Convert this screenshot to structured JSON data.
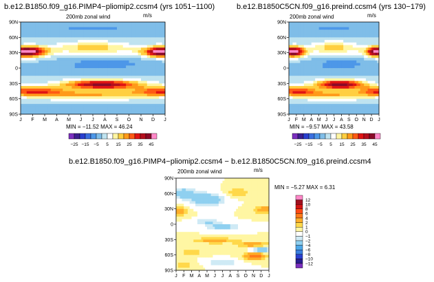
{
  "palette": {
    "wind": [
      "#7b2fbf",
      "#3b1f8f",
      "#2a3fcf",
      "#3a6fe0",
      "#4d97e8",
      "#7fbde8",
      "#bfe3f0",
      "#ffffff",
      "#fff6a3",
      "#ffcf40",
      "#ff9a1a",
      "#ff5a14",
      "#e01414",
      "#b40f1e",
      "#8a0a28",
      "#ff88c8"
    ],
    "diff": [
      "#7b2fbf",
      "#2a1f8f",
      "#2a3fcf",
      "#3a7fe0",
      "#4da7e8",
      "#8fd0f0",
      "#cfeaf5",
      "#ffffff",
      "#fff6a3",
      "#ffd84a",
      "#ffae2a",
      "#ff7a1a",
      "#ff4a14",
      "#d41414",
      "#a00f1e",
      "#ff88c8"
    ]
  },
  "chart_data": [
    {
      "type": "heatmap",
      "title": "b.e12.B1850.f09_g16.PIMP4−pliomip2.ccsm4 (yrs 1051−1100)",
      "subtitle": "200mb zonal wind",
      "units": "m/s",
      "x_ticks": [
        "J",
        "F",
        "M",
        "A",
        "M",
        "J",
        "J",
        "A",
        "S",
        "O",
        "N",
        "D",
        "J"
      ],
      "y_ticks": [
        "90N",
        "60N",
        "30N",
        "0",
        "30S",
        "60S",
        "90S"
      ],
      "stats": "MIN = −11.52  MAX =  46.24",
      "colorbar_labels": [
        "−25",
        "−15",
        "−5",
        "5",
        "15",
        "25",
        "35",
        "45"
      ],
      "levels": [
        -25,
        -20,
        -15,
        -10,
        -5,
        0,
        5,
        10,
        15,
        20,
        25,
        30,
        35,
        40,
        45
      ]
    },
    {
      "type": "heatmap",
      "title": "b.e12.B1850C5CN.f09_g16.preind.ccsm4 (yrs 130−179)",
      "subtitle": "200mb zonal wind",
      "units": "m/s",
      "x_ticks": [
        "J",
        "F",
        "M",
        "A",
        "M",
        "J",
        "J",
        "A",
        "S",
        "O",
        "N",
        "D",
        "J"
      ],
      "y_ticks": [
        "90N",
        "60N",
        "30N",
        "0",
        "30S",
        "60S",
        "90S"
      ],
      "stats": "MIN =  −9.57  MAX =  43.58",
      "colorbar_labels": [
        "−25",
        "−15",
        "−5",
        "5",
        "15",
        "25",
        "35",
        "45"
      ],
      "levels": [
        -25,
        -20,
        -15,
        -10,
        -5,
        0,
        5,
        10,
        15,
        20,
        25,
        30,
        35,
        40,
        45
      ]
    },
    {
      "type": "heatmap",
      "title": "b.e12.B1850.f09_g16.PIMP4−pliomip2.ccsm4 − b.e12.B1850C5CN.f09_g16.preind.ccsm4",
      "subtitle": "200mb zonal wind",
      "units": "m/s",
      "x_ticks": [
        "J",
        "F",
        "M",
        "A",
        "M",
        "J",
        "J",
        "A",
        "S",
        "O",
        "N",
        "D",
        "J"
      ],
      "y_ticks": [
        "90N",
        "60N",
        "30N",
        "0",
        "30S",
        "60S",
        "90S"
      ],
      "stats": "MIN =  −5.27  MAX =   6.31",
      "colorbar_labels": [
        "12",
        "10",
        "8",
        "6",
        "4",
        "2",
        "1",
        "0",
        "−1",
        "−2",
        "−4",
        "−6",
        "−8",
        "−10",
        "−12"
      ],
      "levels": [
        -12,
        -10,
        -8,
        -6,
        -4,
        -2,
        -1,
        0,
        1,
        2,
        4,
        6,
        8,
        10,
        12
      ]
    }
  ]
}
